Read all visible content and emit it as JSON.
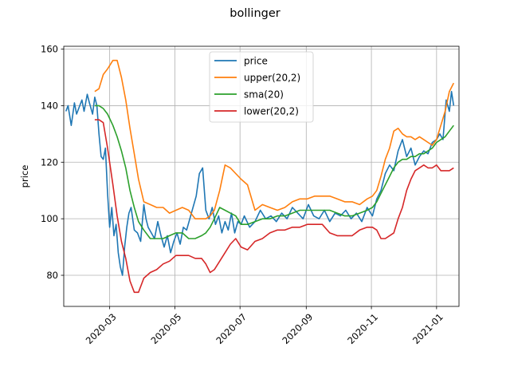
{
  "chart_data": {
    "type": "line",
    "title": "bollinger",
    "xlabel": "",
    "ylabel": "price",
    "xlim": [
      "2020-01-18",
      "2021-01-22"
    ],
    "ylim": [
      69,
      161
    ],
    "grid": true,
    "legend_position": "top-center",
    "xticks": [
      "2020-03",
      "2020-05",
      "2020-07",
      "2020-09",
      "2020-11",
      "2021-01"
    ],
    "yticks": [
      80,
      100,
      120,
      140,
      160
    ],
    "colors": {
      "price": "#1f77b4",
      "upper": "#ff7f0e",
      "sma": "#2ca02c",
      "lower": "#d62728"
    },
    "series": [
      {
        "name": "price",
        "color": "#1f77b4",
        "x": [
          "2020-01-20",
          "2020-01-22",
          "2020-01-25",
          "2020-01-28",
          "2020-01-30",
          "2020-02-02",
          "2020-02-04",
          "2020-02-06",
          "2020-02-09",
          "2020-02-11",
          "2020-02-14",
          "2020-02-16",
          "2020-02-18",
          "2020-02-20",
          "2020-02-22",
          "2020-02-24",
          "2020-02-26",
          "2020-02-28",
          "2020-03-01",
          "2020-03-03",
          "2020-03-05",
          "2020-03-07",
          "2020-03-09",
          "2020-03-11",
          "2020-03-13",
          "2020-03-15",
          "2020-03-17",
          "2020-03-19",
          "2020-03-21",
          "2020-03-24",
          "2020-03-27",
          "2020-03-30",
          "2020-04-02",
          "2020-04-04",
          "2020-04-06",
          "2020-04-09",
          "2020-04-12",
          "2020-04-15",
          "2020-04-18",
          "2020-04-21",
          "2020-04-24",
          "2020-04-27",
          "2020-04-30",
          "2020-05-03",
          "2020-05-06",
          "2020-05-09",
          "2020-05-12",
          "2020-05-15",
          "2020-05-18",
          "2020-05-21",
          "2020-05-24",
          "2020-05-27",
          "2020-05-30",
          "2020-06-02",
          "2020-06-05",
          "2020-06-08",
          "2020-06-11",
          "2020-06-14",
          "2020-06-17",
          "2020-06-20",
          "2020-06-23",
          "2020-06-26",
          "2020-06-29",
          "2020-07-02",
          "2020-07-05",
          "2020-07-10",
          "2020-07-15",
          "2020-07-20",
          "2020-07-25",
          "2020-07-30",
          "2020-08-04",
          "2020-08-09",
          "2020-08-14",
          "2020-08-19",
          "2020-08-24",
          "2020-08-29",
          "2020-09-03",
          "2020-09-08",
          "2020-09-13",
          "2020-09-18",
          "2020-09-23",
          "2020-09-28",
          "2020-10-03",
          "2020-10-08",
          "2020-10-13",
          "2020-10-18",
          "2020-10-23",
          "2020-10-28",
          "2020-11-02",
          "2020-11-06",
          "2020-11-10",
          "2020-11-14",
          "2020-11-18",
          "2020-11-22",
          "2020-11-26",
          "2020-11-30",
          "2020-12-04",
          "2020-12-08",
          "2020-12-12",
          "2020-12-16",
          "2020-12-20",
          "2020-12-24",
          "2020-12-28",
          "2021-01-01",
          "2021-01-04",
          "2021-01-07",
          "2021-01-10",
          "2021-01-13",
          "2021-01-15",
          "2021-01-17"
        ],
        "values": [
          138,
          140,
          133,
          141,
          137,
          140,
          142,
          138,
          144,
          141,
          137,
          143,
          140,
          130,
          122,
          121,
          125,
          109,
          97,
          104,
          94,
          98,
          88,
          83,
          80,
          90,
          97,
          102,
          104,
          96,
          95,
          92,
          105,
          100,
          97,
          95,
          93,
          99,
          94,
          90,
          94,
          88,
          92,
          95,
          91,
          97,
          96,
          100,
          104,
          108,
          116,
          118,
          103,
          100,
          104,
          98,
          101,
          95,
          99,
          96,
          102,
          95,
          99,
          98,
          101,
          97,
          99,
          103,
          100,
          101,
          99,
          102,
          100,
          104,
          102,
          100,
          105,
          101,
          100,
          103,
          99,
          102,
          101,
          103,
          100,
          102,
          99,
          104,
          101,
          107,
          110,
          116,
          119,
          117,
          124,
          128,
          122,
          125,
          119,
          122,
          124,
          123,
          127,
          128,
          130,
          128,
          142,
          138,
          145,
          140
        ]
      },
      {
        "name": "upper(20,2)",
        "color": "#ff7f0e",
        "x": [
          "2020-02-16",
          "2020-02-20",
          "2020-02-24",
          "2020-02-28",
          "2020-03-04",
          "2020-03-08",
          "2020-03-12",
          "2020-03-16",
          "2020-03-20",
          "2020-03-24",
          "2020-03-28",
          "2020-04-02",
          "2020-04-08",
          "2020-04-14",
          "2020-04-20",
          "2020-04-26",
          "2020-05-02",
          "2020-05-08",
          "2020-05-14",
          "2020-05-20",
          "2020-05-26",
          "2020-05-30",
          "2020-06-03",
          "2020-06-07",
          "2020-06-12",
          "2020-06-17",
          "2020-06-22",
          "2020-06-27",
          "2020-07-02",
          "2020-07-08",
          "2020-07-15",
          "2020-07-22",
          "2020-07-29",
          "2020-08-05",
          "2020-08-12",
          "2020-08-19",
          "2020-08-26",
          "2020-09-02",
          "2020-09-09",
          "2020-09-16",
          "2020-09-23",
          "2020-09-30",
          "2020-10-07",
          "2020-10-14",
          "2020-10-21",
          "2020-10-28",
          "2020-11-02",
          "2020-11-06",
          "2020-11-10",
          "2020-11-14",
          "2020-11-18",
          "2020-11-22",
          "2020-11-26",
          "2020-11-30",
          "2020-12-04",
          "2020-12-08",
          "2020-12-12",
          "2020-12-16",
          "2020-12-20",
          "2020-12-24",
          "2020-12-28",
          "2021-01-01",
          "2021-01-05",
          "2021-01-09",
          "2021-01-13",
          "2021-01-17"
        ],
        "values": [
          145,
          146,
          151,
          153,
          156,
          156,
          150,
          142,
          132,
          123,
          114,
          106,
          105,
          104,
          104,
          102,
          103,
          104,
          103,
          100,
          100,
          100,
          101,
          103,
          110,
          119,
          118,
          116,
          114,
          112,
          103,
          105,
          104,
          103,
          104,
          106,
          107,
          107,
          108,
          108,
          108,
          107,
          106,
          106,
          105,
          107,
          108,
          110,
          115,
          121,
          125,
          131,
          132,
          130,
          129,
          129,
          128,
          129,
          128,
          127,
          126,
          128,
          133,
          138,
          145,
          148
        ]
      },
      {
        "name": "sma(20)",
        "color": "#2ca02c",
        "x": [
          "2020-02-16",
          "2020-02-20",
          "2020-02-24",
          "2020-02-28",
          "2020-03-04",
          "2020-03-08",
          "2020-03-12",
          "2020-03-16",
          "2020-03-20",
          "2020-03-24",
          "2020-03-28",
          "2020-04-02",
          "2020-04-08",
          "2020-04-14",
          "2020-04-20",
          "2020-04-26",
          "2020-05-02",
          "2020-05-08",
          "2020-05-14",
          "2020-05-20",
          "2020-05-26",
          "2020-05-30",
          "2020-06-03",
          "2020-06-07",
          "2020-06-12",
          "2020-06-17",
          "2020-06-22",
          "2020-06-27",
          "2020-07-02",
          "2020-07-08",
          "2020-07-15",
          "2020-07-22",
          "2020-07-29",
          "2020-08-05",
          "2020-08-12",
          "2020-08-19",
          "2020-08-26",
          "2020-09-02",
          "2020-09-09",
          "2020-09-16",
          "2020-09-23",
          "2020-09-30",
          "2020-10-07",
          "2020-10-14",
          "2020-10-21",
          "2020-10-28",
          "2020-11-02",
          "2020-11-06",
          "2020-11-10",
          "2020-11-14",
          "2020-11-18",
          "2020-11-22",
          "2020-11-26",
          "2020-11-30",
          "2020-12-04",
          "2020-12-08",
          "2020-12-12",
          "2020-12-16",
          "2020-12-20",
          "2020-12-24",
          "2020-12-28",
          "2021-01-01",
          "2021-01-05",
          "2021-01-09",
          "2021-01-13",
          "2021-01-17"
        ],
        "values": [
          140,
          140,
          139,
          137,
          133,
          129,
          124,
          118,
          110,
          104,
          99,
          96,
          93,
          93,
          93,
          94,
          95,
          95,
          93,
          93,
          94,
          95,
          97,
          100,
          104,
          103,
          102,
          101,
          98,
          98,
          99,
          100,
          100,
          101,
          101,
          102,
          103,
          103,
          103,
          103,
          103,
          102,
          101,
          101,
          102,
          103,
          104,
          106,
          109,
          112,
          115,
          118,
          120,
          121,
          121,
          122,
          122,
          123,
          123,
          124,
          125,
          127,
          128,
          129,
          131,
          133
        ]
      },
      {
        "name": "lower(20,2)",
        "color": "#d62728",
        "x": [
          "2020-02-16",
          "2020-02-20",
          "2020-02-24",
          "2020-02-28",
          "2020-03-04",
          "2020-03-08",
          "2020-03-12",
          "2020-03-16",
          "2020-03-20",
          "2020-03-24",
          "2020-03-28",
          "2020-04-02",
          "2020-04-08",
          "2020-04-14",
          "2020-04-20",
          "2020-04-26",
          "2020-05-02",
          "2020-05-08",
          "2020-05-14",
          "2020-05-20",
          "2020-05-26",
          "2020-05-30",
          "2020-06-03",
          "2020-06-07",
          "2020-06-12",
          "2020-06-17",
          "2020-06-22",
          "2020-06-27",
          "2020-07-02",
          "2020-07-08",
          "2020-07-15",
          "2020-07-22",
          "2020-07-29",
          "2020-08-05",
          "2020-08-12",
          "2020-08-19",
          "2020-08-26",
          "2020-09-02",
          "2020-09-09",
          "2020-09-16",
          "2020-09-23",
          "2020-09-30",
          "2020-10-07",
          "2020-10-14",
          "2020-10-21",
          "2020-10-28",
          "2020-11-02",
          "2020-11-06",
          "2020-11-10",
          "2020-11-14",
          "2020-11-18",
          "2020-11-22",
          "2020-11-26",
          "2020-11-30",
          "2020-12-04",
          "2020-12-08",
          "2020-12-12",
          "2020-12-16",
          "2020-12-20",
          "2020-12-24",
          "2020-12-28",
          "2021-01-01",
          "2021-01-05",
          "2021-01-09",
          "2021-01-13",
          "2021-01-17"
        ],
        "values": [
          135,
          135,
          134,
          125,
          112,
          101,
          92,
          86,
          78,
          74,
          74,
          79,
          81,
          82,
          84,
          85,
          87,
          87,
          87,
          86,
          86,
          84,
          81,
          82,
          85,
          88,
          91,
          93,
          90,
          89,
          92,
          93,
          95,
          96,
          96,
          97,
          97,
          98,
          98,
          98,
          95,
          94,
          94,
          94,
          96,
          97,
          97,
          96,
          93,
          93,
          94,
          95,
          100,
          104,
          110,
          114,
          117,
          118,
          119,
          118,
          118,
          119,
          117,
          117,
          117,
          118
        ]
      }
    ]
  }
}
